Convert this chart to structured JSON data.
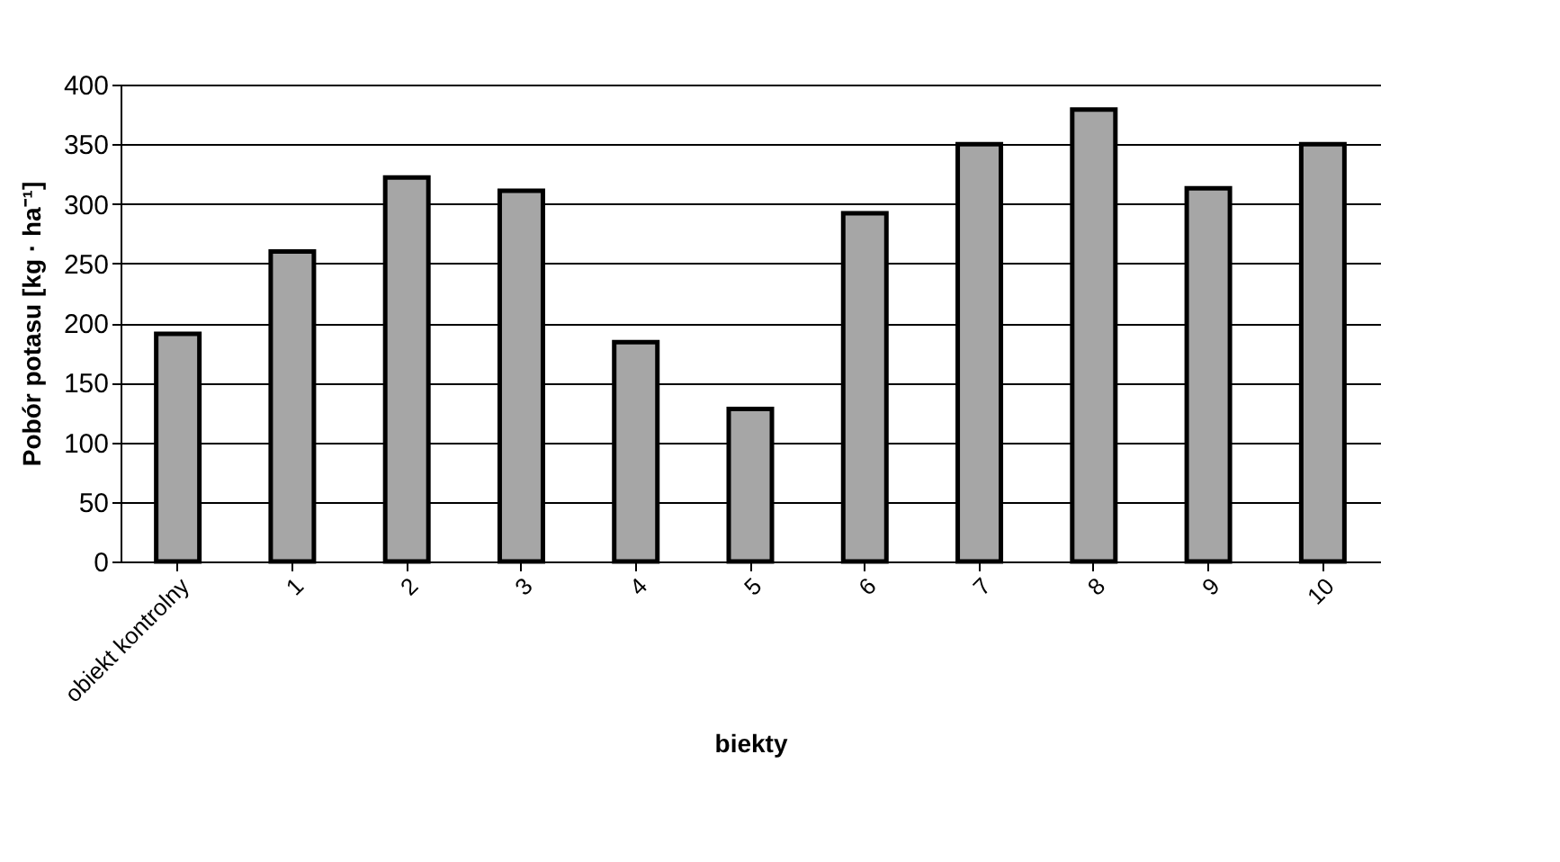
{
  "chart_data": {
    "type": "bar",
    "xlabel": "biekty",
    "ylabel": "Pobór potasu  [kg · ha⁻¹]",
    "categories": [
      "obiekt kontrolny",
      "1",
      "2",
      "3",
      "4",
      "5",
      "6",
      "7",
      "8",
      "9",
      "10"
    ],
    "values": [
      191,
      260,
      322,
      311,
      184,
      128,
      292,
      350,
      379,
      313,
      350
    ],
    "color": "#a6a6a6",
    "ylim": [
      0,
      400
    ],
    "yticks": [
      0,
      50,
      100,
      150,
      200,
      250,
      300,
      350,
      400
    ],
    "grid": "y"
  }
}
